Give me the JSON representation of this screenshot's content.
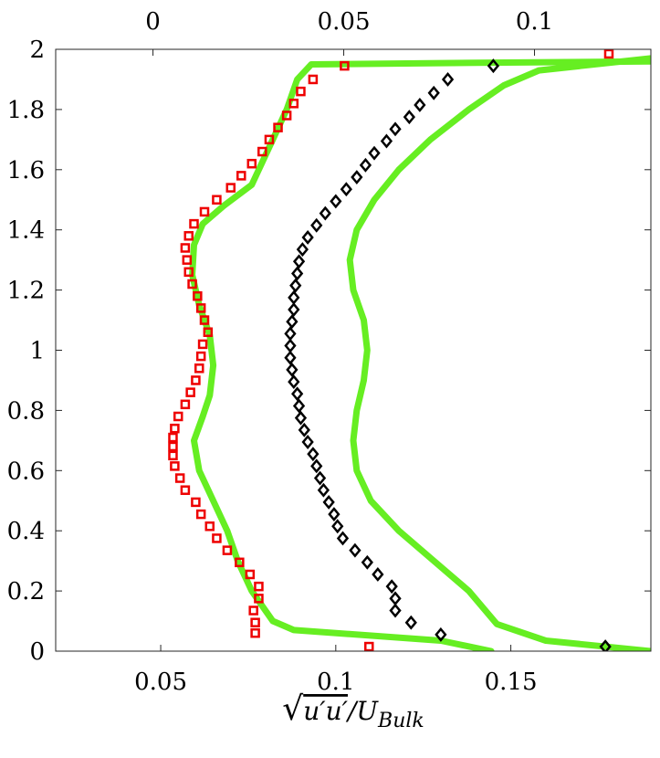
{
  "chart_data": {
    "type": "line",
    "xlabel": "√(u′u′)/U_Bulk",
    "xlabel_parts": {
      "root": "√",
      "term": "u′u′",
      "slash": "/U",
      "sub": "Bulk"
    },
    "x_bottom": {
      "range": [
        0.02,
        0.19
      ],
      "ticks": [
        0.05,
        0.1,
        0.15
      ],
      "tick_labels": [
        "0.05",
        "0.1",
        "0.15"
      ]
    },
    "x_top": {
      "range": [
        -0.0255,
        0.1305
      ],
      "ticks": [
        0,
        0.05,
        0.1
      ],
      "tick_labels": [
        "0",
        "0.05",
        "0.1"
      ]
    },
    "y": {
      "range": [
        0,
        2
      ],
      "ticks": [
        0,
        0.2,
        0.4,
        0.6,
        0.8,
        1,
        1.2,
        1.4,
        1.6,
        1.8,
        2
      ],
      "tick_labels": [
        "0",
        "0.2",
        "0.4",
        "0.6",
        "0.8",
        "1",
        "1.2",
        "1.4",
        "1.6",
        "1.8",
        "2"
      ]
    },
    "grid": false,
    "colors": {
      "line": "#66ee22",
      "square": "#ee0000",
      "diamond": "#000000"
    },
    "series": [
      {
        "kind": "line",
        "axis": "bottom",
        "points": [
          [
            0.1444,
            0.0
          ],
          [
            0.13,
            0.035
          ],
          [
            0.088,
            0.07
          ],
          [
            0.082,
            0.1
          ],
          [
            0.076,
            0.2
          ],
          [
            0.072,
            0.3
          ],
          [
            0.069,
            0.4
          ],
          [
            0.065,
            0.5
          ],
          [
            0.061,
            0.6
          ],
          [
            0.0595,
            0.7
          ],
          [
            0.062,
            0.78
          ],
          [
            0.064,
            0.85
          ],
          [
            0.065,
            0.95
          ],
          [
            0.064,
            1.05
          ],
          [
            0.061,
            1.15
          ],
          [
            0.059,
            1.25
          ],
          [
            0.0595,
            1.35
          ],
          [
            0.062,
            1.42
          ],
          [
            0.068,
            1.48
          ],
          [
            0.076,
            1.55
          ],
          [
            0.082,
            1.7
          ],
          [
            0.086,
            1.8
          ],
          [
            0.089,
            1.9
          ],
          [
            0.093,
            1.95
          ],
          [
            0.14,
            1.955
          ],
          [
            0.19,
            1.96
          ]
        ]
      },
      {
        "kind": "line",
        "axis": "bottom",
        "points": [
          [
            0.19,
            0.0
          ],
          [
            0.16,
            0.035
          ],
          [
            0.146,
            0.09
          ],
          [
            0.138,
            0.2
          ],
          [
            0.128,
            0.3
          ],
          [
            0.118,
            0.4
          ],
          [
            0.11,
            0.5
          ],
          [
            0.106,
            0.6
          ],
          [
            0.105,
            0.7
          ],
          [
            0.106,
            0.8
          ],
          [
            0.108,
            0.9
          ],
          [
            0.109,
            1.0
          ],
          [
            0.108,
            1.1
          ],
          [
            0.105,
            1.2
          ],
          [
            0.104,
            1.3
          ],
          [
            0.106,
            1.4
          ],
          [
            0.111,
            1.5
          ],
          [
            0.118,
            1.6
          ],
          [
            0.127,
            1.7
          ],
          [
            0.138,
            1.8
          ],
          [
            0.148,
            1.88
          ],
          [
            0.158,
            1.93
          ],
          [
            0.19,
            1.97
          ]
        ]
      },
      {
        "kind": "square",
        "axis": "bottom",
        "points": [
          [
            0.1095,
            0.015
          ],
          [
            0.077,
            0.06
          ],
          [
            0.077,
            0.095
          ],
          [
            0.0765,
            0.135
          ],
          [
            0.078,
            0.175
          ],
          [
            0.078,
            0.215
          ],
          [
            0.0755,
            0.255
          ],
          [
            0.0725,
            0.295
          ],
          [
            0.069,
            0.335
          ],
          [
            0.066,
            0.375
          ],
          [
            0.064,
            0.415
          ],
          [
            0.0615,
            0.455
          ],
          [
            0.06,
            0.495
          ],
          [
            0.057,
            0.535
          ],
          [
            0.0555,
            0.575
          ],
          [
            0.054,
            0.615
          ],
          [
            0.0535,
            0.65
          ],
          [
            0.0535,
            0.68
          ],
          [
            0.0535,
            0.71
          ],
          [
            0.054,
            0.74
          ],
          [
            0.055,
            0.78
          ],
          [
            0.057,
            0.82
          ],
          [
            0.0585,
            0.86
          ],
          [
            0.06,
            0.9
          ],
          [
            0.061,
            0.94
          ],
          [
            0.0615,
            0.98
          ],
          [
            0.062,
            1.02
          ],
          [
            0.0635,
            1.06
          ],
          [
            0.0625,
            1.1
          ],
          [
            0.0615,
            1.14
          ],
          [
            0.0605,
            1.18
          ],
          [
            0.059,
            1.22
          ],
          [
            0.058,
            1.26
          ],
          [
            0.0575,
            1.3
          ],
          [
            0.057,
            1.34
          ],
          [
            0.058,
            1.38
          ],
          [
            0.0595,
            1.42
          ],
          [
            0.0625,
            1.46
          ],
          [
            0.066,
            1.5
          ],
          [
            0.07,
            1.54
          ],
          [
            0.073,
            1.58
          ],
          [
            0.076,
            1.62
          ],
          [
            0.079,
            1.66
          ],
          [
            0.081,
            1.7
          ],
          [
            0.0835,
            1.74
          ],
          [
            0.086,
            1.78
          ],
          [
            0.088,
            1.82
          ],
          [
            0.09,
            1.86
          ],
          [
            0.0935,
            1.9
          ],
          [
            0.1025,
            1.945
          ],
          [
            0.178,
            1.985
          ]
        ]
      },
      {
        "kind": "diamond",
        "axis": "bottom",
        "points": [
          [
            0.177,
            0.015
          ],
          [
            0.13,
            0.055
          ],
          [
            0.1215,
            0.095
          ],
          [
            0.117,
            0.135
          ],
          [
            0.117,
            0.175
          ],
          [
            0.116,
            0.215
          ],
          [
            0.112,
            0.255
          ],
          [
            0.109,
            0.295
          ],
          [
            0.1055,
            0.335
          ],
          [
            0.102,
            0.375
          ],
          [
            0.1005,
            0.415
          ],
          [
            0.0995,
            0.455
          ],
          [
            0.098,
            0.495
          ],
          [
            0.0965,
            0.535
          ],
          [
            0.0955,
            0.575
          ],
          [
            0.0945,
            0.615
          ],
          [
            0.0935,
            0.655
          ],
          [
            0.092,
            0.695
          ],
          [
            0.091,
            0.735
          ],
          [
            0.09,
            0.775
          ],
          [
            0.0895,
            0.815
          ],
          [
            0.089,
            0.855
          ],
          [
            0.088,
            0.895
          ],
          [
            0.0875,
            0.935
          ],
          [
            0.087,
            0.975
          ],
          [
            0.087,
            1.015
          ],
          [
            0.087,
            1.055
          ],
          [
            0.0875,
            1.095
          ],
          [
            0.088,
            1.135
          ],
          [
            0.088,
            1.175
          ],
          [
            0.0885,
            1.215
          ],
          [
            0.089,
            1.255
          ],
          [
            0.0895,
            1.295
          ],
          [
            0.0905,
            1.335
          ],
          [
            0.092,
            1.375
          ],
          [
            0.0945,
            1.415
          ],
          [
            0.097,
            1.455
          ],
          [
            0.1,
            1.495
          ],
          [
            0.103,
            1.535
          ],
          [
            0.106,
            1.575
          ],
          [
            0.1085,
            1.615
          ],
          [
            0.111,
            1.655
          ],
          [
            0.1145,
            1.695
          ],
          [
            0.117,
            1.735
          ],
          [
            0.121,
            1.775
          ],
          [
            0.124,
            1.815
          ],
          [
            0.128,
            1.855
          ],
          [
            0.132,
            1.9
          ],
          [
            0.145,
            1.945
          ]
        ]
      }
    ]
  }
}
